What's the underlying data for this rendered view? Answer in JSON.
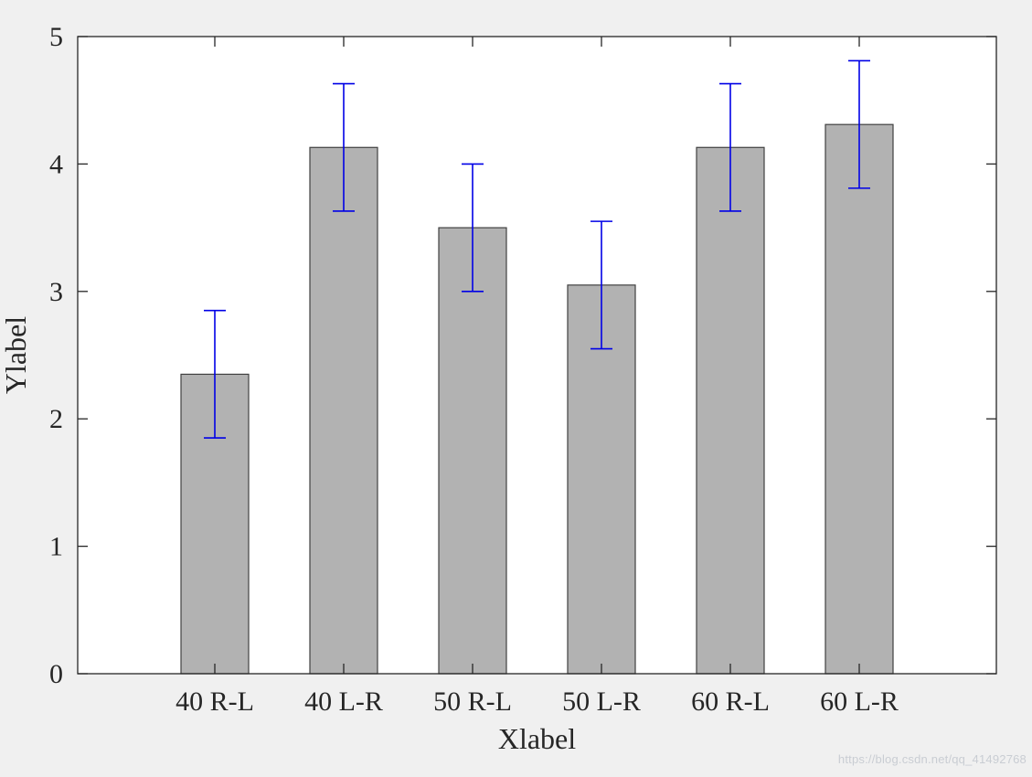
{
  "chart_data": {
    "type": "bar",
    "title": "",
    "xlabel": "Xlabel",
    "ylabel": "Ylabel",
    "categories": [
      "40 R-L",
      "40 L-R",
      "50 R-L",
      "50 L-R",
      "60 R-L",
      "60 L-R"
    ],
    "values": [
      2.35,
      4.13,
      3.5,
      3.05,
      4.13,
      4.31
    ],
    "errors": [
      0.5,
      0.5,
      0.5,
      0.5,
      0.5,
      0.5
    ],
    "ylim": [
      0,
      5
    ],
    "yticks": [
      0,
      1,
      2,
      3,
      4,
      5
    ],
    "grid": false,
    "legend": null,
    "colors": {
      "figure_bg": "#f0f0f0",
      "plot_bg": "#ffffff",
      "bar_fill": "#b2b2b2",
      "bar_edge": "#404040",
      "error_bar": "#0000e6",
      "axis": "#262626",
      "text": "#262626"
    }
  },
  "watermark": {
    "text": "https://blog.csdn.net/qq_41492768"
  }
}
